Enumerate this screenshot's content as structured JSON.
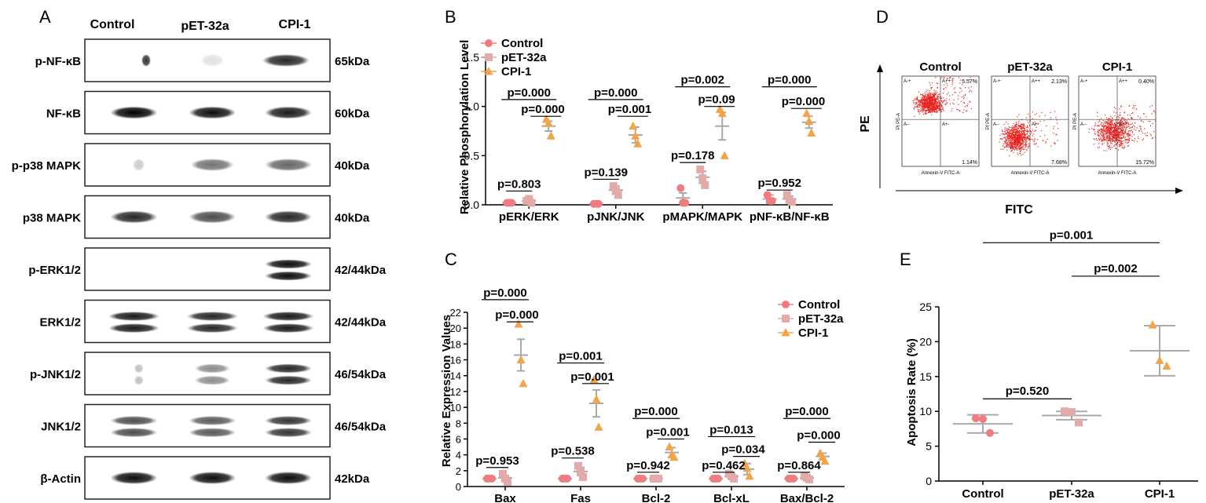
{
  "colors": {
    "control": "#f07c80",
    "pet32a": "#e3aaaa",
    "cpi1": "#f2a448",
    "mean_bar": "#a9a9a9",
    "flow_dots": "#e8231f"
  },
  "panel_A": {
    "letter": "A",
    "columns": [
      "Control",
      "pET-32a",
      "CPI-1"
    ],
    "blots": [
      {
        "label": "p-NF-κB",
        "size": "65kDa",
        "bands": [
          [
            0.25,
            0.12,
            0.8
          ],
          [
            0.52,
            0.3,
            0.12
          ],
          [
            0.82,
            0.6,
            0.85
          ]
        ]
      },
      {
        "label": "NF-κB",
        "size": "60kDa",
        "bands": [
          [
            0.2,
            0.6,
            1.0
          ],
          [
            0.52,
            0.6,
            0.95
          ],
          [
            0.83,
            0.6,
            0.9
          ]
        ]
      },
      {
        "label": "p-p38 MAPK",
        "size": "40kDa",
        "bands": [
          [
            0.22,
            0.15,
            0.2
          ],
          [
            0.52,
            0.55,
            0.55
          ],
          [
            0.83,
            0.6,
            0.6
          ]
        ]
      },
      {
        "label": "p38 MAPK",
        "size": "40kDa",
        "bands": [
          [
            0.2,
            0.6,
            0.85
          ],
          [
            0.52,
            0.6,
            0.7
          ],
          [
            0.83,
            0.6,
            0.85
          ]
        ]
      },
      {
        "label": "p-ERK1/2",
        "size": "42/44kDa",
        "bands": [
          [
            0.83,
            0.6,
            0.95
          ]
        ]
      },
      {
        "label": "ERK1/2",
        "size": "42/44kDa",
        "bands": [
          [
            0.2,
            0.65,
            0.9
          ],
          [
            0.52,
            0.65,
            0.85
          ],
          [
            0.83,
            0.65,
            0.9
          ]
        ]
      },
      {
        "label": "p-JNK1/2",
        "size": "46/54kDa",
        "bands": [
          [
            0.22,
            0.12,
            0.25
          ],
          [
            0.52,
            0.45,
            0.45
          ],
          [
            0.83,
            0.6,
            0.85
          ]
        ]
      },
      {
        "label": "JNK1/2",
        "size": "46/54kDa",
        "bands": [
          [
            0.2,
            0.6,
            0.7
          ],
          [
            0.52,
            0.6,
            0.65
          ],
          [
            0.83,
            0.6,
            0.8
          ]
        ]
      },
      {
        "label": "β-Actin",
        "size": "42kDa",
        "bands": [
          [
            0.2,
            0.6,
            0.95
          ],
          [
            0.52,
            0.6,
            0.95
          ],
          [
            0.83,
            0.6,
            0.95
          ]
        ]
      }
    ]
  },
  "panel_D": {
    "letter": "D",
    "y_axis": "PE",
    "x_axis": "FITC",
    "plots": [
      {
        "title": "Control",
        "q_ul": "5.57%",
        "q_lr": "1.14%",
        "q_tl": "A-+",
        "q_tr": "A++",
        "q_bl": "A--",
        "q_br": "A+-",
        "xlabel": "Annexin-V FITC-A",
        "ylabel": "PI PE-A"
      },
      {
        "title": "pET-32a",
        "q_ul": "2.13%",
        "q_lr": "7.68%",
        "q_tl": "A-+",
        "q_tr": "A++",
        "q_bl": "A--",
        "q_br": "A+-",
        "xlabel": "Annexin-V FITC-A",
        "ylabel": "PI PE-A"
      },
      {
        "title": "CPI-1",
        "q_ul": "0.40%",
        "q_lr": "15.72%",
        "q_tl": "A-+",
        "q_tr": "A++",
        "q_bl": "A--",
        "q_br": "A+-",
        "xlabel": "Annexin-V FITC-A",
        "ylabel": "PI PE-A"
      }
    ]
  },
  "chart_data": [
    {
      "id": "B",
      "letter": "B",
      "type": "scatter",
      "ylabel": "Relative Phosphorylation Level",
      "ylim": [
        0,
        1.5
      ],
      "yticks": [
        "0.0",
        "0.5",
        "1.0",
        "1.5"
      ],
      "categories": [
        "pERK/ERK",
        "pJNK/JNK",
        "pMAPK/MAPK",
        "pNF-κB/NF-κB"
      ],
      "legend": [
        "Control",
        "pET-32a",
        "CPI-1"
      ],
      "series": [
        {
          "name": "Control",
          "means": [
            0.02,
            0.01,
            0.07,
            0.06
          ],
          "sems": [
            0.01,
            0.005,
            0.05,
            0.04
          ],
          "points": [
            [
              0.02,
              0.02,
              0.02
            ],
            [
              0.01,
              0.01,
              0.01
            ],
            [
              0.17,
              0.02,
              0.02
            ],
            [
              0.1,
              0.04,
              0.04
            ]
          ]
        },
        {
          "name": "pET-32a",
          "means": [
            0.04,
            0.15,
            0.28,
            0.06
          ],
          "sems": [
            0.02,
            0.04,
            0.06,
            0.03
          ],
          "points": [
            [
              0.04,
              0.06,
              0.02
            ],
            [
              0.19,
              0.16,
              0.1
            ],
            [
              0.36,
              0.27,
              0.2
            ],
            [
              0.1,
              0.05,
              0.03
            ]
          ]
        },
        {
          "name": "CPI-1",
          "means": [
            0.8,
            0.71,
            0.8,
            0.84
          ],
          "sems": [
            0.05,
            0.08,
            0.14,
            0.06
          ],
          "points": [
            [
              0.87,
              0.83,
              0.7
            ],
            [
              0.8,
              0.7,
              0.62
            ],
            [
              0.97,
              0.93,
              0.5
            ],
            [
              0.93,
              0.85,
              0.73
            ]
          ]
        }
      ],
      "annotations": [
        {
          "cat": 0,
          "long": "p=0.803",
          "short": "",
          "long_y": 0.14,
          "short_y": null
        },
        {
          "cat": 1,
          "long": "p=0.139",
          "short": "",
          "long_y": 0.26,
          "short_y": null
        },
        {
          "cat": 2,
          "long": "p=0.178",
          "short": "",
          "long_y": 0.43,
          "short_y": null
        },
        {
          "cat": 3,
          "long": "p=0.952",
          "short": "",
          "long_y": 0.15,
          "short_y": null
        },
        {
          "cat": 0,
          "long": "p=0.000",
          "short": "p=0.000",
          "long_y": 1.07,
          "short_y": 0.9
        },
        {
          "cat": 1,
          "long": "p=0.000",
          "short": "p=0.001",
          "long_y": 1.07,
          "short_y": 0.9
        },
        {
          "cat": 2,
          "long": "p=0.002",
          "short": "p=0.09",
          "long_y": 1.2,
          "short_y": 1.0
        },
        {
          "cat": 3,
          "long": "p=0.000",
          "short": "p=0.000",
          "long_y": 1.2,
          "short_y": 0.98
        }
      ]
    },
    {
      "id": "C",
      "letter": "C",
      "type": "scatter",
      "ylabel": "Relative Expression Values",
      "ylim": [
        0,
        22
      ],
      "yticks": [
        "0",
        "2",
        "4",
        "6",
        "8",
        "10",
        "12",
        "14",
        "16",
        "18",
        "20",
        "22"
      ],
      "categories": [
        "Bax",
        "Fas",
        "Bcl-2",
        "Bcl-xL",
        "Bax/Bcl-2"
      ],
      "legend": [
        "Control",
        "pET-32a",
        "CPI-1"
      ],
      "series": [
        {
          "name": "Control",
          "means": [
            1,
            1,
            1,
            1,
            1
          ],
          "sems": [
            0.05,
            0.05,
            0.05,
            0.05,
            0.05
          ],
          "points": [
            [
              1,
              1,
              1
            ],
            [
              1,
              1,
              1
            ],
            [
              1,
              1,
              1
            ],
            [
              1,
              1,
              1
            ],
            [
              1,
              1,
              1
            ]
          ]
        },
        {
          "name": "pET-32a",
          "means": [
            1.1,
            1.9,
            1.0,
            1.3,
            1.1
          ],
          "sems": [
            0.3,
            0.5,
            0.1,
            0.3,
            0.2
          ],
          "points": [
            [
              1.6,
              1.0,
              0.6
            ],
            [
              2.6,
              1.8,
              1.2
            ],
            [
              1.0,
              1.0,
              1.0
            ],
            [
              1.6,
              1.3,
              1.0
            ],
            [
              1.3,
              1.1,
              0.9
            ]
          ]
        },
        {
          "name": "CPI-1",
          "means": [
            16.6,
            10.5,
            4.3,
            2.2,
            3.8
          ],
          "sems": [
            2.0,
            1.7,
            0.6,
            0.7,
            0.4
          ],
          "points": [
            [
              20.5,
              16.0,
              13.0
            ],
            [
              13.5,
              11.0,
              7.5
            ],
            [
              5.0,
              4.0,
              3.7
            ],
            [
              2.9,
              2.3,
              1.3
            ],
            [
              4.2,
              3.7,
              3.2
            ]
          ]
        }
      ],
      "annotations": [
        {
          "cat": 0,
          "long": "p=0.953",
          "short": "",
          "long_y": 2.4,
          "short_y": null
        },
        {
          "cat": 1,
          "long": "p=0.538",
          "short": "",
          "long_y": 3.6,
          "short_y": null
        },
        {
          "cat": 2,
          "long": "p=0.942",
          "short": "",
          "long_y": 1.8,
          "short_y": null
        },
        {
          "cat": 3,
          "long": "p=0.462",
          "short": "",
          "long_y": 1.8,
          "short_y": null
        },
        {
          "cat": 4,
          "long": "p=0.864",
          "short": "",
          "long_y": 1.8,
          "short_y": null
        },
        {
          "cat": 0,
          "long": "p=0.000",
          "short": "p=0.000",
          "long_y": 23.6,
          "short_y": 20.8
        },
        {
          "cat": 1,
          "long": "p=0.001",
          "short": "p=0.001",
          "long_y": 15.6,
          "short_y": 13.0
        },
        {
          "cat": 2,
          "long": "p=0.000",
          "short": "p=0.001",
          "long_y": 8.6,
          "short_y": 6.0
        },
        {
          "cat": 3,
          "long": "p=0.013",
          "short": "p=0.034",
          "long_y": 6.3,
          "short_y": 3.8
        },
        {
          "cat": 4,
          "long": "p=0.000",
          "short": "p=0.000",
          "long_y": 8.6,
          "short_y": 5.6
        }
      ]
    },
    {
      "id": "E",
      "letter": "E",
      "type": "scatter",
      "ylabel": "Apoptosis Rate (%)",
      "ylim": [
        0,
        25
      ],
      "yticks": [
        "0",
        "5",
        "10",
        "15",
        "20",
        "25"
      ],
      "categories": [
        "Control",
        "pET-32a",
        "CPI-1"
      ],
      "means": [
        8.2,
        9.4,
        18.7
      ],
      "sems": [
        1.3,
        0.6,
        3.6
      ],
      "points": [
        [
          9.0,
          8.9,
          6.9
        ],
        [
          10.0,
          9.9,
          8.4
        ],
        [
          22.4,
          17.3,
          16.5
        ]
      ],
      "annotations": [
        {
          "from": 0,
          "to": 1,
          "text": "p=0.520",
          "y": 11.8
        },
        {
          "from": 1,
          "to": 2,
          "text": "p=0.002",
          "y": 29.4
        },
        {
          "from": 0,
          "to": 2,
          "text": "p=0.001",
          "y": 34.2
        }
      ]
    }
  ]
}
